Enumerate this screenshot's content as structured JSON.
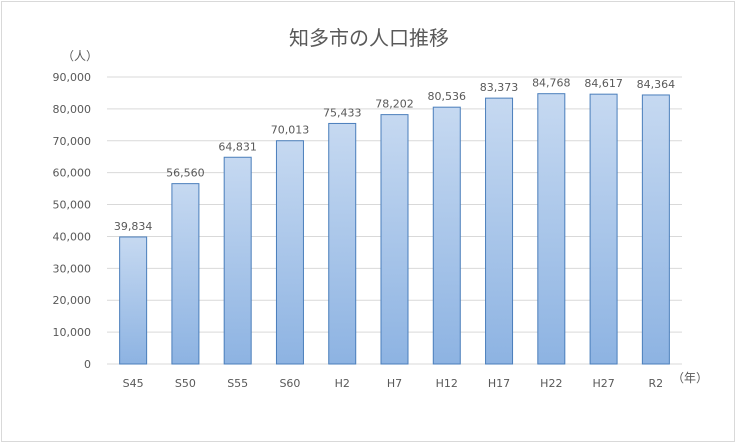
{
  "chart_data": {
    "type": "bar",
    "title": "知多市の人口推移",
    "y_unit_label": "（人）",
    "x_unit_label": "（年）",
    "categories": [
      "S45",
      "S50",
      "S55",
      "S60",
      "H2",
      "H7",
      "H12",
      "H17",
      "H22",
      "H27",
      "R2"
    ],
    "values": [
      39834,
      56560,
      64831,
      70013,
      75433,
      78202,
      80536,
      83373,
      84768,
      84617,
      84364
    ],
    "value_labels": [
      "39,834",
      "56,560",
      "64,831",
      "70,013",
      "75,433",
      "78,202",
      "80,536",
      "83,373",
      "84,768",
      "84,617",
      "84,364"
    ],
    "ylim": [
      0,
      90000
    ],
    "y_ticks": [
      0,
      10000,
      20000,
      30000,
      40000,
      50000,
      60000,
      70000,
      80000,
      90000
    ],
    "y_tick_labels": [
      "0",
      "10,000",
      "20,000",
      "30,000",
      "40,000",
      "50,000",
      "60,000",
      "70,000",
      "80,000",
      "90,000"
    ],
    "grid": true,
    "legend": "none",
    "colors": {
      "bar_top": "#c6d9f1",
      "bar_bottom": "#8db3e2",
      "bar_border": "#4a7ebb",
      "grid": "#d9d9d9",
      "text": "#595959"
    }
  }
}
